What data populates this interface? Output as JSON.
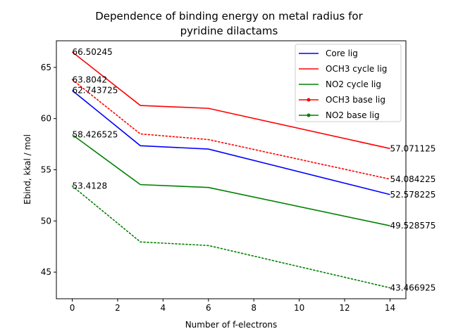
{
  "chart_data": {
    "type": "line",
    "title_lines": [
      "Dependence of binding energy on metal radius for",
      "pyridine dilactams"
    ],
    "xlabel": "Number of f-electrons",
    "ylabel": "Ebind, kkal / mol",
    "xlim": [
      -0.7,
      14.7
    ],
    "ylim": [
      42.4,
      67.6
    ],
    "xticks": [
      0,
      2,
      4,
      6,
      8,
      10,
      12,
      14
    ],
    "yticks": [
      45,
      50,
      55,
      60,
      65
    ],
    "grid": false,
    "legend_position": "top-right",
    "x": [
      0,
      3,
      6,
      14
    ],
    "series": [
      {
        "name": "Core lig",
        "color": "#0000ff",
        "style": "solid",
        "values": [
          62.743725,
          57.35,
          57.02,
          52.578225
        ],
        "start_label": "62.743725",
        "end_label": "52.578225"
      },
      {
        "name": "OCH3 cycle lig",
        "color": "#ff0000",
        "style": "solid",
        "values": [
          66.50245,
          61.28,
          61.0,
          57.071125
        ],
        "start_label": "66.50245",
        "end_label": "57.071125"
      },
      {
        "name": "NO2 cycle lig",
        "color": "#008000",
        "style": "solid",
        "values": [
          58.426525,
          53.55,
          53.27,
          49.528575
        ],
        "start_label": "58.426525",
        "end_label": "49.528575"
      },
      {
        "name": "OCH3 base lig",
        "color": "#ff0000",
        "style": "dotted",
        "values": [
          63.8042,
          58.5,
          57.95,
          54.084225
        ],
        "start_label": "63.8042",
        "end_label": "54.084225"
      },
      {
        "name": "NO2 base lig",
        "color": "#008000",
        "style": "dotted",
        "values": [
          53.4128,
          47.95,
          47.6,
          43.466925
        ],
        "start_label": "53.4128",
        "end_label": "43.466925"
      }
    ]
  }
}
